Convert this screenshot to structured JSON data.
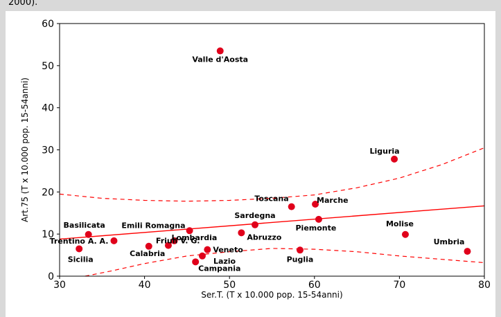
{
  "caption_fragment": "2000).",
  "colors": {
    "points": "#e0001b",
    "fit_line": "#ff0000",
    "band": "#ff0000",
    "panel_bg": "#d9d9d9"
  },
  "chart_data": {
    "type": "scatter",
    "xlabel": "Ser.T. (T x 10.000 pop. 15-54anni)",
    "ylabel": "Art.75 (T x 10.000 pop. 15-54anni)",
    "xlim": [
      30,
      80
    ],
    "ylim": [
      0,
      60
    ],
    "xticks": [
      30,
      40,
      50,
      60,
      70,
      80
    ],
    "yticks": [
      0,
      10,
      20,
      30,
      40,
      50,
      60
    ],
    "grid": false,
    "points": [
      {
        "label": "Valle d'Aosta",
        "x": 48.9,
        "y": 53.5
      },
      {
        "label": "Liguria",
        "x": 69.4,
        "y": 27.8
      },
      {
        "label": "Marche",
        "x": 60.1,
        "y": 17.1
      },
      {
        "label": "Toscana",
        "x": 57.3,
        "y": 16.5
      },
      {
        "label": "Sardegna",
        "x": 53.0,
        "y": 12.2
      },
      {
        "label": "Piemonte",
        "x": 60.5,
        "y": 13.5
      },
      {
        "label": "Abruzzo",
        "x": 51.4,
        "y": 10.3
      },
      {
        "label": "Molise",
        "x": 70.7,
        "y": 9.9
      },
      {
        "label": "Umbria",
        "x": 78.0,
        "y": 5.9
      },
      {
        "label": "Puglia",
        "x": 58.3,
        "y": 6.2
      },
      {
        "label": "Veneto",
        "x": 47.4,
        "y": 6.3
      },
      {
        "label": "Lazio",
        "x": 46.8,
        "y": 4.8
      },
      {
        "label": "Campania",
        "x": 46.0,
        "y": 3.4
      },
      {
        "label": "Lombardia",
        "x": 43.5,
        "y": 8.4
      },
      {
        "label": "Emili Romagna",
        "x": 45.3,
        "y": 10.8
      },
      {
        "label": "Friuli V. G.",
        "x": 42.8,
        "y": 7.3
      },
      {
        "label": "Calabria",
        "x": 40.5,
        "y": 7.1
      },
      {
        "label": "Trentino A. A.",
        "x": 36.4,
        "y": 8.4
      },
      {
        "label": "Basilicata",
        "x": 33.4,
        "y": 9.9
      },
      {
        "label": "Sicilia",
        "x": 32.3,
        "y": 6.5
      }
    ],
    "regression_line": {
      "x": [
        30,
        80
      ],
      "y": [
        8.8,
        16.7
      ]
    },
    "confidence_band": {
      "upper": {
        "x": [
          30,
          35,
          40,
          45,
          50,
          55,
          60,
          65,
          70,
          75,
          80
        ],
        "y": [
          19.5,
          18.5,
          18.0,
          17.8,
          18.0,
          18.5,
          19.3,
          21.0,
          23.3,
          26.5,
          30.5
        ]
      },
      "lower": {
        "x": [
          33,
          36,
          40,
          45,
          50,
          55,
          60,
          65,
          70,
          75,
          80
        ],
        "y": [
          0.0,
          1.2,
          3.0,
          4.8,
          5.8,
          6.6,
          6.4,
          5.8,
          4.8,
          4.0,
          3.2
        ]
      }
    }
  }
}
